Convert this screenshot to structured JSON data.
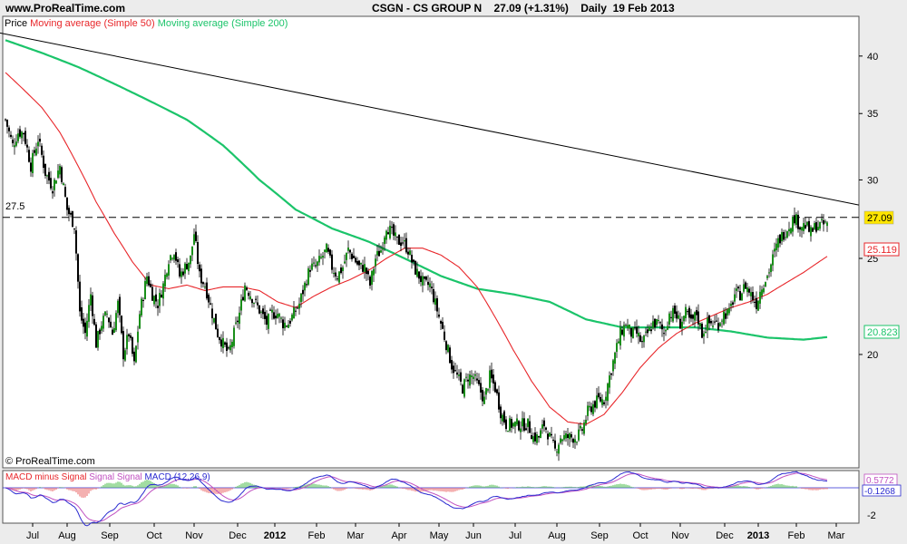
{
  "site": "www.ProRealTime.com",
  "header": {
    "symbol": "CSGN - CS GROUP N",
    "price": "27.09",
    "change": "(+1.31%)",
    "period": "Daily",
    "date": "19 Feb 2013"
  },
  "legend": {
    "price": "Price",
    "ma50": "Moving average (Simple 50)",
    "ma200": "Moving average (Simple 200)"
  },
  "copyright": "© ProRealTime.com",
  "macd_legend": {
    "hist": "MACD minus Signal",
    "signal": "Signal",
    "macd": "MACD",
    "params": "(12,26,9)"
  },
  "labels": {
    "resistance": "27.5",
    "last_price": "27.09",
    "ma50_last": "25.119",
    "ma200_last": "20.823",
    "macd_a": "0.5772",
    "macd_b": "-0.1268",
    "macd_tick": "-2"
  },
  "colors": {
    "up": "#1a8f1a",
    "down": "#000000",
    "ma50": "#e8262a",
    "ma200": "#1bc46a",
    "macd": "#2a2ad0",
    "signal": "#c050c0",
    "last_bg": "#ffe600"
  },
  "chart_data": {
    "type": "candlestick",
    "scale": "log",
    "ylim": [
      15.5,
      43.5
    ],
    "yticks": [
      20,
      25,
      30,
      35,
      40
    ],
    "xticks": [
      {
        "label": "Jul",
        "x": 36
      },
      {
        "label": "Aug",
        "x": 74
      },
      {
        "label": "Sep",
        "x": 121
      },
      {
        "label": "Oct",
        "x": 170
      },
      {
        "label": "Nov",
        "x": 214
      },
      {
        "label": "Dec",
        "x": 262
      },
      {
        "label": "2012",
        "x": 303,
        "bold": true
      },
      {
        "label": "Feb",
        "x": 349
      },
      {
        "label": "Mar",
        "x": 392
      },
      {
        "label": "Apr",
        "x": 440
      },
      {
        "label": "May",
        "x": 484
      },
      {
        "label": "Jun",
        "x": 522
      },
      {
        "label": "Jul",
        "x": 568
      },
      {
        "label": "Aug",
        "x": 614
      },
      {
        "label": "Sep",
        "x": 661
      },
      {
        "label": "Oct",
        "x": 706
      },
      {
        "label": "Nov",
        "x": 750
      },
      {
        "label": "Dec",
        "x": 799
      },
      {
        "label": "2013",
        "x": 836,
        "bold": true
      },
      {
        "label": "Feb",
        "x": 878
      },
      {
        "label": "Mar",
        "x": 922
      }
    ],
    "close_anchors": [
      [
        0,
        34.5
      ],
      [
        8,
        32.5
      ],
      [
        14,
        33.5
      ],
      [
        20,
        33.5
      ],
      [
        28,
        31
      ],
      [
        36,
        33
      ],
      [
        44,
        30.5
      ],
      [
        52,
        29.5
      ],
      [
        60,
        31
      ],
      [
        68,
        28
      ],
      [
        76,
        27
      ],
      [
        82,
        22
      ],
      [
        88,
        21
      ],
      [
        94,
        23
      ],
      [
        100,
        20.5
      ],
      [
        106,
        21.5
      ],
      [
        112,
        22
      ],
      [
        118,
        21
      ],
      [
        124,
        22.5
      ],
      [
        130,
        20
      ],
      [
        136,
        21
      ],
      [
        142,
        19.5
      ],
      [
        148,
        22
      ],
      [
        156,
        24
      ],
      [
        162,
        23
      ],
      [
        168,
        22.5
      ],
      [
        174,
        23.5
      ],
      [
        180,
        25
      ],
      [
        186,
        25.5
      ],
      [
        192,
        24
      ],
      [
        198,
        24.5
      ],
      [
        204,
        25
      ],
      [
        208,
        26.5
      ],
      [
        214,
        24
      ],
      [
        220,
        23.5
      ],
      [
        228,
        22
      ],
      [
        234,
        21
      ],
      [
        240,
        20.5
      ],
      [
        246,
        20
      ],
      [
        252,
        21
      ],
      [
        258,
        22
      ],
      [
        264,
        23.5
      ],
      [
        270,
        23
      ],
      [
        276,
        22.5
      ],
      [
        282,
        22
      ],
      [
        288,
        21.5
      ],
      [
        294,
        22
      ],
      [
        300,
        22
      ],
      [
        306,
        21.5
      ],
      [
        312,
        21.5
      ],
      [
        318,
        22
      ],
      [
        324,
        22.5
      ],
      [
        330,
        23.5
      ],
      [
        336,
        24.5
      ],
      [
        342,
        24.5
      ],
      [
        348,
        25
      ],
      [
        354,
        25.5
      ],
      [
        360,
        24.5
      ],
      [
        366,
        24
      ],
      [
        372,
        24.5
      ],
      [
        378,
        25.5
      ],
      [
        384,
        25
      ],
      [
        390,
        24.5
      ],
      [
        396,
        24.5
      ],
      [
        402,
        23.5
      ],
      [
        408,
        25
      ],
      [
        414,
        25.5
      ],
      [
        420,
        27
      ],
      [
        426,
        26.5
      ],
      [
        432,
        26
      ],
      [
        438,
        26
      ],
      [
        444,
        25.5
      ],
      [
        450,
        24.5
      ],
      [
        456,
        24
      ],
      [
        462,
        23.5
      ],
      [
        468,
        23.5
      ],
      [
        474,
        22.5
      ],
      [
        480,
        21.5
      ],
      [
        486,
        20.5
      ],
      [
        492,
        19.5
      ],
      [
        498,
        19
      ],
      [
        504,
        18.5
      ],
      [
        510,
        19
      ],
      [
        516,
        19
      ],
      [
        522,
        18.5
      ],
      [
        528,
        18
      ],
      [
        534,
        19
      ],
      [
        540,
        18.5
      ],
      [
        546,
        17.5
      ],
      [
        552,
        17
      ],
      [
        558,
        17
      ],
      [
        564,
        17
      ],
      [
        570,
        17
      ],
      [
        576,
        17
      ],
      [
        582,
        16.5
      ],
      [
        588,
        16.5
      ],
      [
        594,
        17
      ],
      [
        600,
        16.5
      ],
      [
        606,
        16
      ],
      [
        612,
        16.5
      ],
      [
        618,
        16.5
      ],
      [
        624,
        16.5
      ],
      [
        630,
        16.5
      ],
      [
        636,
        16.8
      ],
      [
        642,
        17.5
      ],
      [
        648,
        17.8
      ],
      [
        654,
        18
      ],
      [
        660,
        18
      ],
      [
        666,
        19
      ],
      [
        672,
        20
      ],
      [
        678,
        21
      ],
      [
        684,
        21.5
      ],
      [
        690,
        21
      ],
      [
        696,
        21
      ],
      [
        702,
        20.5
      ],
      [
        708,
        21
      ],
      [
        714,
        21.5
      ],
      [
        720,
        21.5
      ],
      [
        726,
        21
      ],
      [
        732,
        22
      ],
      [
        738,
        22
      ],
      [
        744,
        21.5
      ],
      [
        750,
        22
      ],
      [
        756,
        21.5
      ],
      [
        762,
        22
      ],
      [
        768,
        21
      ],
      [
        774,
        21.5
      ],
      [
        780,
        21.5
      ],
      [
        786,
        21.5
      ],
      [
        792,
        22
      ],
      [
        798,
        22
      ],
      [
        804,
        23
      ],
      [
        810,
        23
      ],
      [
        816,
        23.5
      ],
      [
        822,
        23
      ],
      [
        828,
        22.5
      ],
      [
        834,
        23.5
      ],
      [
        840,
        24
      ],
      [
        846,
        25
      ],
      [
        852,
        26
      ],
      [
        858,
        26.5
      ],
      [
        864,
        27
      ],
      [
        870,
        27.5
      ],
      [
        876,
        27
      ],
      [
        882,
        27
      ],
      [
        888,
        26.5
      ],
      [
        894,
        27
      ],
      [
        900,
        27
      ],
      [
        906,
        27.09
      ]
    ],
    "ma50_anchors": [
      [
        0,
        38.5
      ],
      [
        20,
        37
      ],
      [
        40,
        35.5
      ],
      [
        60,
        33.5
      ],
      [
        80,
        31
      ],
      [
        100,
        28.5
      ],
      [
        120,
        26.5
      ],
      [
        140,
        24.8
      ],
      [
        160,
        23.5
      ],
      [
        180,
        23.3
      ],
      [
        200,
        23.5
      ],
      [
        220,
        23.2
      ],
      [
        240,
        23.4
      ],
      [
        260,
        23.4
      ],
      [
        280,
        23.2
      ],
      [
        300,
        22.6
      ],
      [
        320,
        22.3
      ],
      [
        340,
        22.9
      ],
      [
        360,
        23.4
      ],
      [
        380,
        23.8
      ],
      [
        400,
        24.3
      ],
      [
        420,
        25
      ],
      [
        440,
        25.6
      ],
      [
        460,
        25.6
      ],
      [
        480,
        25.2
      ],
      [
        500,
        24.5
      ],
      [
        520,
        23.4
      ],
      [
        540,
        21.8
      ],
      [
        560,
        20.2
      ],
      [
        580,
        18.8
      ],
      [
        600,
        17.7
      ],
      [
        620,
        17.1
      ],
      [
        640,
        17
      ],
      [
        660,
        17.4
      ],
      [
        680,
        18.3
      ],
      [
        700,
        19.4
      ],
      [
        720,
        20.3
      ],
      [
        740,
        21
      ],
      [
        760,
        21.5
      ],
      [
        780,
        21.9
      ],
      [
        800,
        22.3
      ],
      [
        820,
        22.6
      ],
      [
        840,
        23
      ],
      [
        860,
        23.6
      ],
      [
        880,
        24.2
      ],
      [
        906,
        25.119
      ]
    ],
    "ma200_anchors": [
      [
        0,
        41.5
      ],
      [
        40,
        40.3
      ],
      [
        80,
        39
      ],
      [
        120,
        37.5
      ],
      [
        160,
        36
      ],
      [
        200,
        34.5
      ],
      [
        240,
        32.5
      ],
      [
        280,
        30
      ],
      [
        320,
        28
      ],
      [
        360,
        26.8
      ],
      [
        400,
        26
      ],
      [
        440,
        25
      ],
      [
        480,
        24
      ],
      [
        520,
        23.3
      ],
      [
        560,
        23
      ],
      [
        600,
        22.6
      ],
      [
        640,
        21.7
      ],
      [
        680,
        21.3
      ],
      [
        720,
        21.3
      ],
      [
        760,
        21.3
      ],
      [
        800,
        21.1
      ],
      [
        840,
        20.8
      ],
      [
        880,
        20.7
      ],
      [
        906,
        20.823
      ]
    ],
    "trendline": {
      "from": [
        0,
        42.2
      ],
      "to": [
        947,
        28.3
      ]
    },
    "resistance": 27.5,
    "last_price": 27.09,
    "ma50_last": 25.119,
    "ma200_last": 20.823,
    "macd_ylim": [
      -2.6,
      1.4
    ]
  }
}
